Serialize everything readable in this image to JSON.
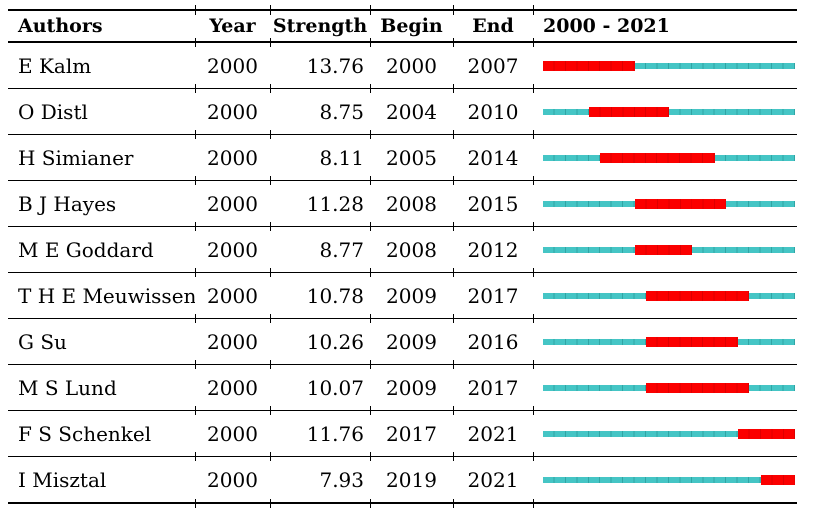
{
  "chart_data": {
    "type": "table",
    "columns": [
      "Authors",
      "Year",
      "Strength",
      "Begin",
      "End",
      "2000 - 2021"
    ],
    "timeline": {
      "start_year": 2000,
      "end_year": 2021,
      "label": "2000 - 2021"
    },
    "colors": {
      "timeline_base": "#45C5C5",
      "burst": "#FB0000",
      "text": "#000000",
      "rule": "#000000"
    },
    "legend": {
      "base_bar_meaning": "full interval 2000-2021",
      "burst_bar_meaning": "burst period from Begin to End year"
    },
    "rows": [
      {
        "author": "E Kalm",
        "year": "2000",
        "strength": "13.76",
        "begin": 2000,
        "end": 2007
      },
      {
        "author": "O Distl",
        "year": "2000",
        "strength": "8.75",
        "begin": 2004,
        "end": 2010
      },
      {
        "author": "H Simianer",
        "year": "2000",
        "strength": "8.11",
        "begin": 2005,
        "end": 2014
      },
      {
        "author": "B J Hayes",
        "year": "2000",
        "strength": "11.28",
        "begin": 2008,
        "end": 2015
      },
      {
        "author": "M E Goddard",
        "year": "2000",
        "strength": "8.77",
        "begin": 2008,
        "end": 2012
      },
      {
        "author": "T H E Meuwissen",
        "year": "2000",
        "strength": "10.78",
        "begin": 2009,
        "end": 2017
      },
      {
        "author": "G Su",
        "year": "2000",
        "strength": "10.26",
        "begin": 2009,
        "end": 2016
      },
      {
        "author": "M S Lund",
        "year": "2000",
        "strength": "10.07",
        "begin": 2009,
        "end": 2017
      },
      {
        "author": "F S Schenkel",
        "year": "2000",
        "strength": "11.76",
        "begin": 2017,
        "end": 2021
      },
      {
        "author": "I Misztal",
        "year": "2000",
        "strength": "7.93",
        "begin": 2019,
        "end": 2021
      }
    ]
  }
}
